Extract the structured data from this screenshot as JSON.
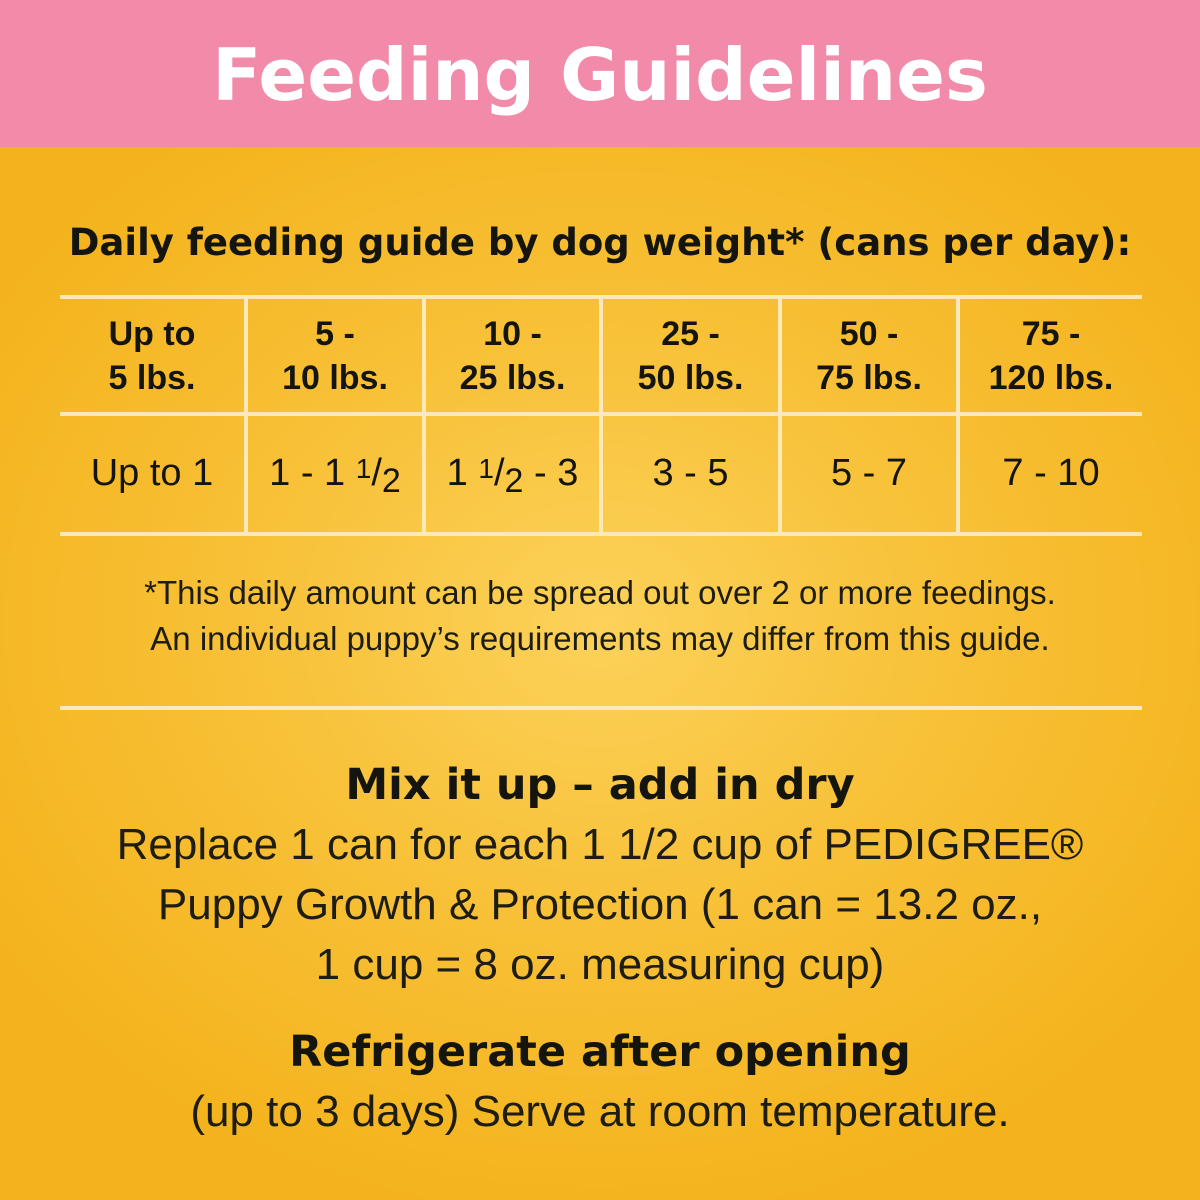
{
  "banner": {
    "title": "Feeding Guidelines",
    "color": "#f28aa9"
  },
  "guide": {
    "heading": "Daily feeding guide by dog weight* (cans per day):",
    "columns": [
      {
        "weight_line1": "Up to",
        "weight_line2": "5 lbs.",
        "cans": "Up to 1"
      },
      {
        "weight_line1": "5 -",
        "weight_line2": "10 lbs.",
        "cans_whole": "1 - 1",
        "cans_num": "1",
        "cans_den": "2",
        "cans_after": ""
      },
      {
        "weight_line1": "10 -",
        "weight_line2": "25 lbs.",
        "cans_whole": "1",
        "cans_num": "1",
        "cans_den": "2",
        "cans_after": " - 3"
      },
      {
        "weight_line1": "25 -",
        "weight_line2": "50 lbs.",
        "cans": "3 - 5"
      },
      {
        "weight_line1": "50 -",
        "weight_line2": "75 lbs.",
        "cans": "5 - 7"
      },
      {
        "weight_line1": "75 -",
        "weight_line2": "120 lbs.",
        "cans": "7 - 10"
      }
    ],
    "note_line1": "*This daily amount can be spread out over 2 or more feedings.",
    "note_line2": "An individual puppy’s requirements may differ from this guide."
  },
  "mix": {
    "heading": "Mix it up – add in dry",
    "line1": "Replace 1 can for each 1 1/2 cup of PEDIGREE®",
    "line2": "Puppy Growth & Protection (1 can = 13.2 oz.,",
    "line3": "1 cup = 8 oz. measuring cup)"
  },
  "refrigerate": {
    "heading": "Refrigerate after opening",
    "body": "(up to 3 days) Serve at room temperature."
  },
  "colors": {
    "background": "#f6ba2a",
    "grid_lines": "#fbe9b8",
    "text": "#15150f"
  }
}
